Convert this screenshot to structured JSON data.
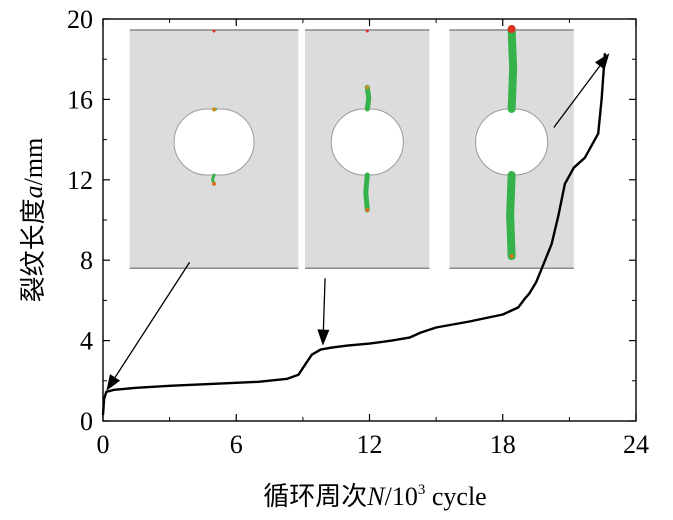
{
  "chart_data": {
    "type": "line",
    "xlabel": "循环周次",
    "xlabel_var": "N",
    "xlabel_unit": "/10",
    "xlabel_exp": "3",
    "xlabel_tail": " cycle",
    "ylabel": "裂纹长度",
    "ylabel_var": "a",
    "ylabel_unit": "/mm",
    "xlim": [
      0,
      24
    ],
    "ylim": [
      0,
      20
    ],
    "xticks": [
      0,
      6,
      12,
      18,
      24
    ],
    "yticks": [
      0,
      4,
      8,
      12,
      16,
      20
    ],
    "grid": false,
    "series": [
      {
        "x": [
          0,
          0.05,
          0.15,
          0.5,
          1.5,
          3,
          5,
          7,
          8.3,
          8.8,
          9.1,
          9.4,
          9.8,
          10.3,
          11,
          12,
          13,
          13.8,
          14.3,
          15,
          16.5,
          18,
          18.7,
          19.0,
          19.2,
          19.5,
          19.8,
          20.2,
          20.5,
          20.8,
          21.2,
          21.7,
          22.1,
          22.3,
          22.45,
          22.6
        ],
        "y": [
          0.3,
          1.1,
          1.45,
          1.55,
          1.65,
          1.75,
          1.85,
          1.95,
          2.1,
          2.3,
          2.8,
          3.3,
          3.55,
          3.65,
          3.75,
          3.85,
          4.0,
          4.15,
          4.4,
          4.65,
          4.95,
          5.3,
          5.65,
          6.1,
          6.35,
          6.9,
          7.7,
          8.8,
          10.2,
          11.8,
          12.6,
          13.1,
          13.9,
          14.3,
          16.0,
          18.3
        ]
      }
    ],
    "annotations": [
      {
        "type": "arrow",
        "from": [
          3.9,
          7.9
        ],
        "to": [
          0.15,
          1.5
        ]
      },
      {
        "type": "arrow",
        "from": [
          10.0,
          7.1
        ],
        "to": [
          9.9,
          3.75
        ]
      },
      {
        "type": "arrow",
        "from": [
          20.3,
          14.6
        ],
        "to": [
          22.8,
          18.3
        ]
      }
    ],
    "insets": [
      {
        "x0": 1.2,
        "x1": 8.8,
        "y0": 7.6,
        "y1": 19.45,
        "upper_crack_top": 15.5,
        "lower_crack_bottom": 11.8
      },
      {
        "x0": 9.1,
        "x1": 14.7,
        "y0": 7.6,
        "y1": 19.45,
        "upper_crack_top": 16.6,
        "lower_crack_bottom": 10.5
      },
      {
        "x0": 15.6,
        "x1": 21.2,
        "y0": 7.6,
        "y1": 19.45,
        "upper_crack_top": 19.5,
        "lower_crack_bottom": 8.2
      }
    ]
  }
}
